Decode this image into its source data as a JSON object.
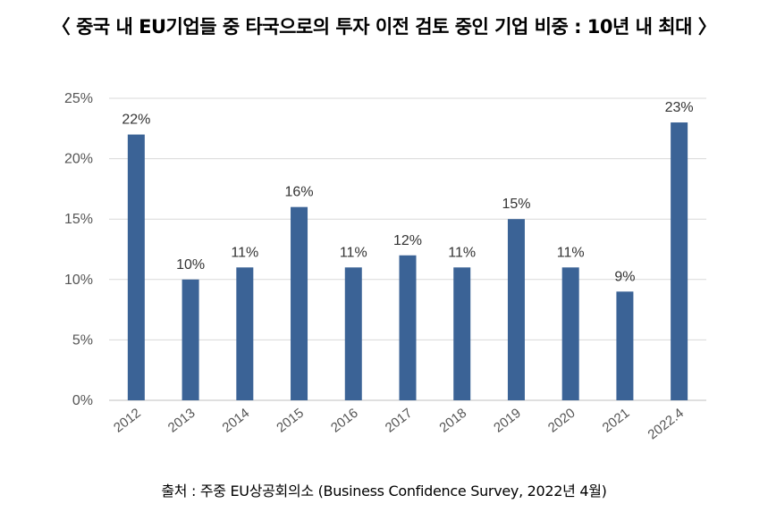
{
  "title": "〈 중국 내 EU기업들 중 타국으로의 투자 이전 검토 중인 기업 비중 : 10년 내 최대 〉",
  "source": "출처 : 주중 EU상공회의소 (Business Confidence Survey, 2022년 4월)",
  "colors": {
    "bar": "#3b6396",
    "grid": "#d9d9d9",
    "axis": "#bfbfbf"
  },
  "chart_data": {
    "type": "bar",
    "categories": [
      "2012",
      "2013",
      "2014",
      "2015",
      "2016",
      "2017",
      "2018",
      "2019",
      "2020",
      "2021",
      "2022.4"
    ],
    "values": [
      22,
      10,
      11,
      16,
      11,
      12,
      11,
      15,
      11,
      9,
      23
    ],
    "value_labels": [
      "22%",
      "10%",
      "11%",
      "16%",
      "11%",
      "12%",
      "11%",
      "15%",
      "11%",
      "9%",
      "23%"
    ],
    "yticks": [
      0,
      5,
      10,
      15,
      20,
      25
    ],
    "ytick_labels": [
      "0%",
      "5%",
      "10%",
      "15%",
      "20%",
      "25%"
    ],
    "ylim": [
      0,
      25
    ],
    "grid": true,
    "xlabel_rotation": "diagonal"
  }
}
